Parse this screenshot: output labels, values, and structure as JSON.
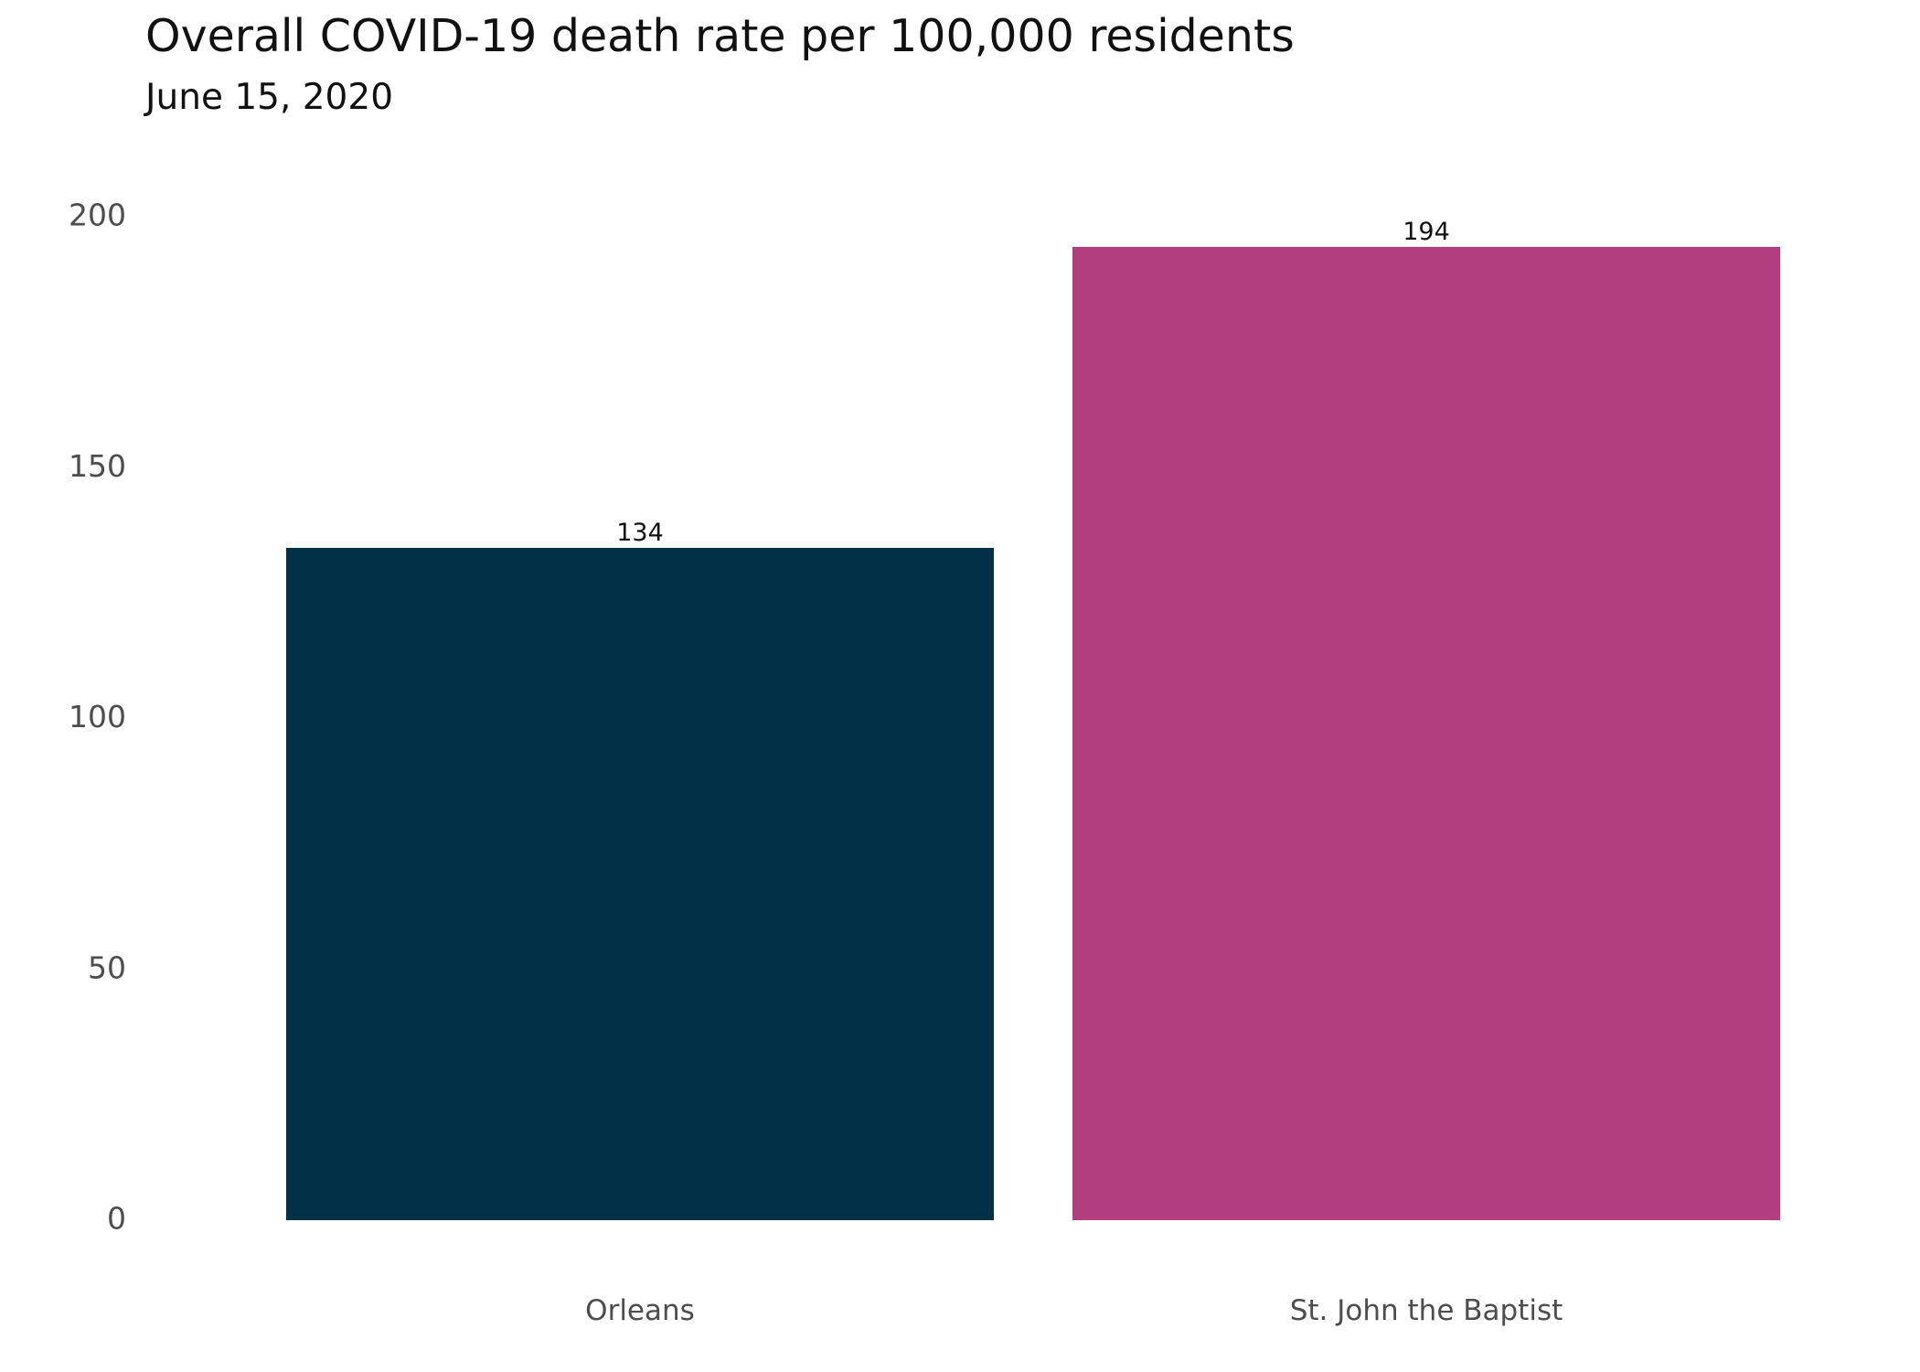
{
  "chart_data": {
    "type": "bar",
    "title": "Overall COVID-19 death rate per 100,000 residents",
    "subtitle": "June 15, 2020",
    "xlabel": "",
    "ylabel": "",
    "categories": [
      "Orleans",
      "St. John the Baptist"
    ],
    "values": [
      134,
      194
    ],
    "data_labels": [
      "134",
      "194"
    ],
    "colors": [
      "#023047",
      "#b23e7f"
    ],
    "ylim": [
      0,
      200
    ],
    "y_ticks": [
      0,
      50,
      100,
      150,
      200
    ],
    "y_tick_labels": [
      "0",
      "50",
      "100",
      "150",
      "200"
    ],
    "grid": false,
    "legend": "none"
  }
}
